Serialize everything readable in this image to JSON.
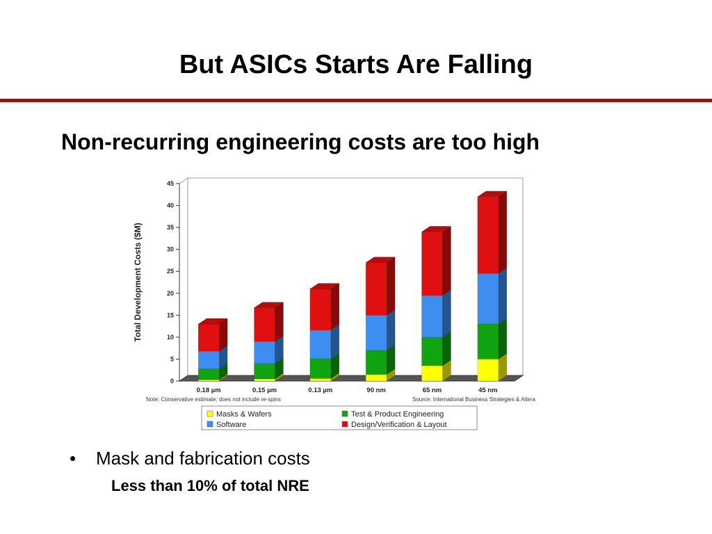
{
  "title": "But ASICs Starts Are Falling",
  "subtitle": "Non-recurring engineering costs are too high",
  "bullets": [
    {
      "text": "Mask and fabrication costs",
      "sub": "Less than 10% of total NRE"
    }
  ],
  "chart_data": {
    "type": "bar",
    "stacked": true,
    "three_d": true,
    "categories": [
      "0.18 µm",
      "0.15 µm",
      "0.13 µm",
      "90 nm",
      "65 nm",
      "45 nm"
    ],
    "series": [
      {
        "name": "Masks & Wafers",
        "color": "#ffff00",
        "values": [
          0.3,
          0.5,
          0.6,
          1.5,
          3.5,
          5
        ]
      },
      {
        "name": "Test & Product Engineering",
        "color": "#11a411",
        "values": [
          2.5,
          3.5,
          4.5,
          5.5,
          6.5,
          8
        ]
      },
      {
        "name": "Software",
        "color": "#3c8ef0",
        "values": [
          4,
          5,
          6.5,
          8,
          9.5,
          11.5
        ]
      },
      {
        "name": "Design/Verification & Layout",
        "color": "#e01010",
        "values": [
          6.2,
          7.7,
          9.4,
          12,
          14.5,
          17.5
        ]
      }
    ],
    "ylabel": "Total Development Costs ($M)",
    "xlabel": "",
    "ylim": [
      0,
      45
    ],
    "yticks": [
      0,
      5,
      10,
      15,
      20,
      25,
      30,
      35,
      40,
      45
    ],
    "grid": false,
    "legend": "bottom",
    "note_left": "Note: Conservative estimate; does not include re-spins",
    "note_right": "Source: International Business Strategies & Altera"
  }
}
